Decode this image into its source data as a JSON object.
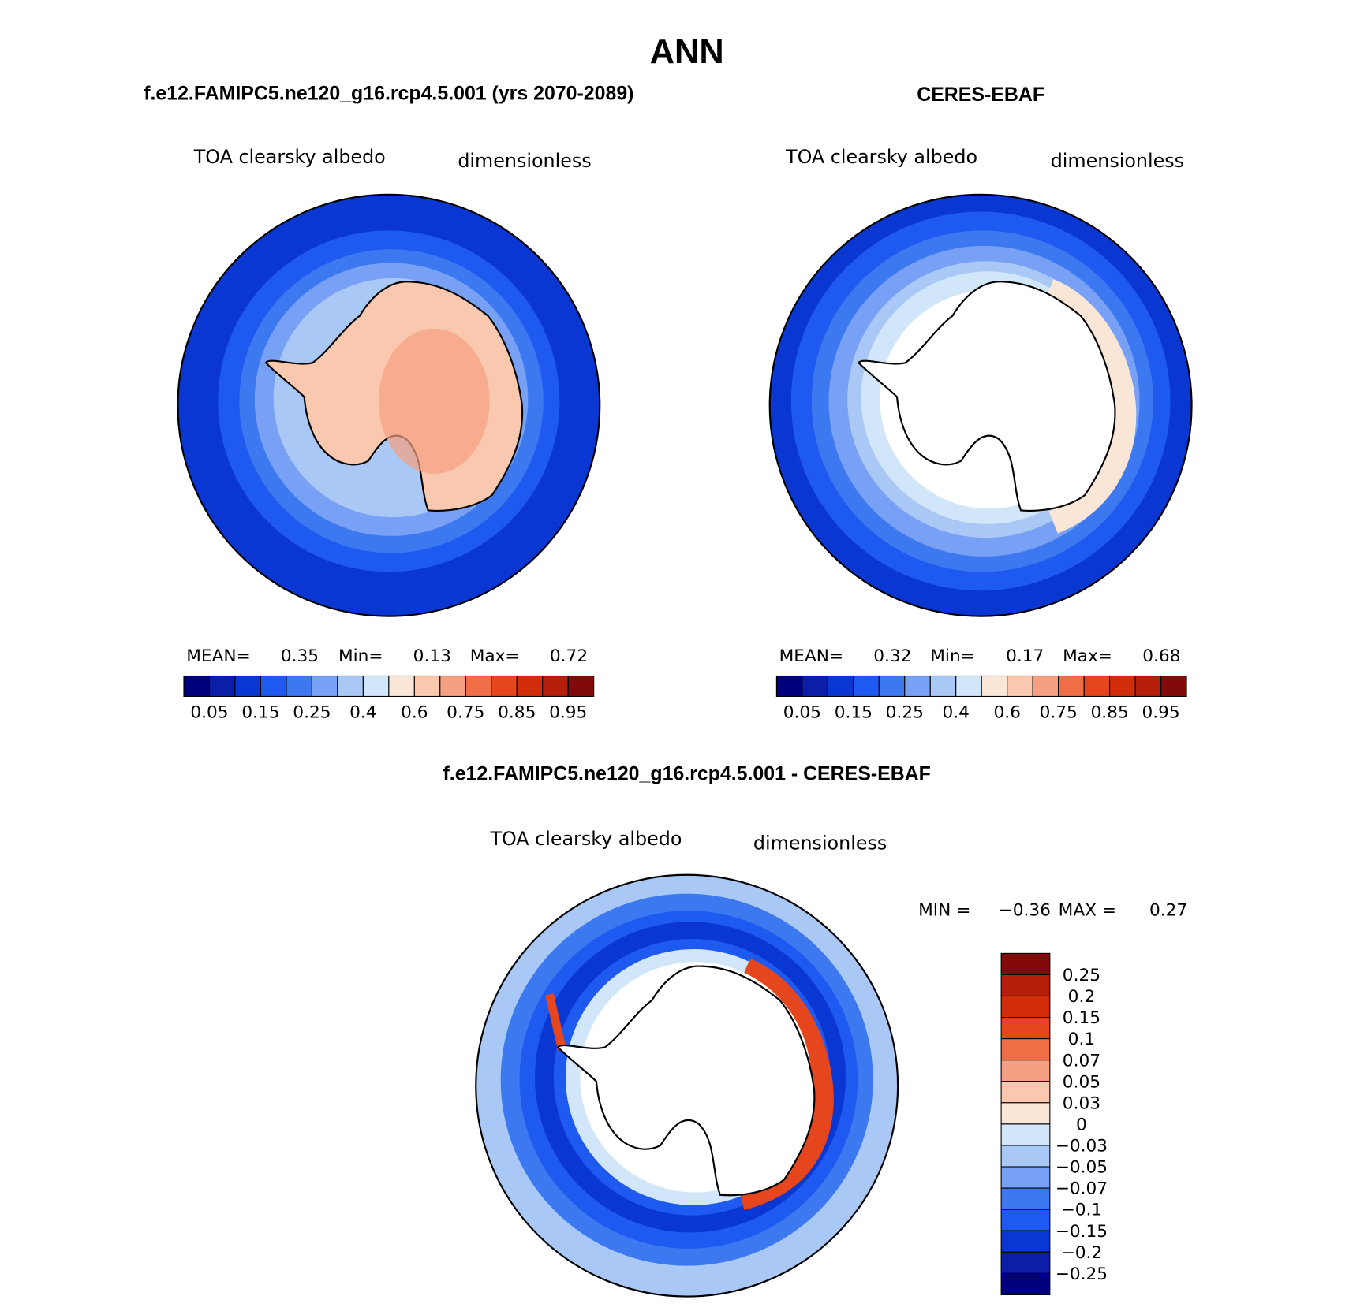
{
  "figure_title": "ANN",
  "panels": [
    {
      "title": "f.e12.FAMIPC5.ne120_g16.rcp4.5.001 (yrs 2070-2089)",
      "variable": "TOA clearsky albedo",
      "units": "dimensionless",
      "stats": {
        "mean_label": "MEAN=",
        "mean": "0.35",
        "min_label": "Min=",
        "min": "0.13",
        "max_label": "Max=",
        "max": "0.72"
      }
    },
    {
      "title": "CERES-EBAF",
      "variable": "TOA clearsky albedo",
      "units": "dimensionless",
      "stats": {
        "mean_label": "MEAN=",
        "mean": "0.32",
        "min_label": "Min=",
        "min": "0.17",
        "max_label": "Max=",
        "max": "0.68"
      }
    },
    {
      "title": "f.e12.FAMIPC5.ne120_g16.rcp4.5.001 - CERES-EBAF",
      "variable": "TOA clearsky albedo",
      "units": "dimensionless",
      "stats": {
        "min_label": "MIN =",
        "min": "−0.36",
        "max_label": "MAX =",
        "max": "0.27"
      }
    }
  ],
  "abs_colorbar": {
    "labels": [
      "0.05",
      "0.15",
      "0.25",
      "0.4",
      "0.6",
      "0.75",
      "0.85",
      "0.95"
    ],
    "colors": [
      "#00007f",
      "#0a1ea8",
      "#0a37d2",
      "#1e5af0",
      "#3c78f0",
      "#78a0f5",
      "#aac8f5",
      "#d2e6fa",
      "#fae6d7",
      "#fac8af",
      "#f5a082",
      "#f06e46",
      "#e6461e",
      "#d22d0a",
      "#b41e0a",
      "#820a0a"
    ]
  },
  "diff_colorbar": {
    "labels": [
      "0.25",
      "0.2",
      "0.15",
      "0.1",
      "0.07",
      "0.05",
      "0.03",
      "0",
      "−0.03",
      "−0.05",
      "−0.07",
      "−0.1",
      "−0.15",
      "−0.2",
      "−0.25"
    ],
    "colors_top_to_bottom": [
      "#820a0a",
      "#b41e0a",
      "#d22d0a",
      "#e6461e",
      "#f06e46",
      "#f5a082",
      "#fac8af",
      "#fae6d7",
      "#d2e6fa",
      "#aac8f5",
      "#78a0f5",
      "#3c78f0",
      "#1e5af0",
      "#0a37d2",
      "#0a1ea8",
      "#00007f"
    ]
  }
}
